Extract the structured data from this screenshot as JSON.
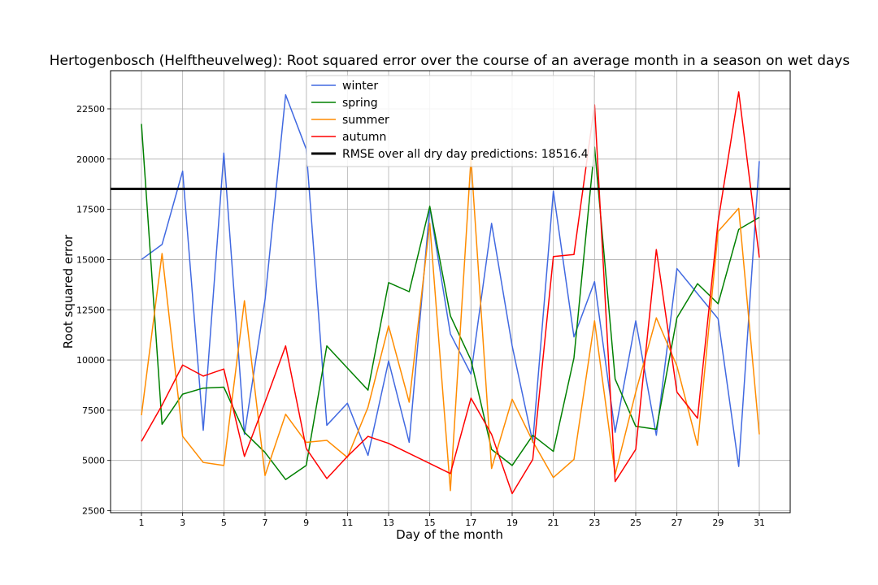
{
  "chart_data": {
    "type": "line",
    "title": "Hertogenbosch (Helftheuvelweg): Root squared error over the course of an average month in a season on wet days",
    "xlabel": "Day of the month",
    "ylabel": "Root squared error",
    "x": [
      1,
      2,
      3,
      4,
      5,
      6,
      7,
      8,
      9,
      10,
      11,
      12,
      13,
      14,
      15,
      16,
      17,
      18,
      19,
      20,
      21,
      22,
      23,
      24,
      25,
      26,
      27,
      28,
      29,
      30,
      31
    ],
    "xlim": [
      -0.5,
      32.5
    ],
    "ylim": [
      2400,
      24400
    ],
    "xticks": [
      1,
      3,
      5,
      7,
      9,
      11,
      13,
      15,
      17,
      19,
      21,
      23,
      25,
      27,
      29,
      31
    ],
    "yticks": [
      2500,
      5000,
      7500,
      10000,
      12500,
      15000,
      17500,
      20000,
      22500
    ],
    "grid": true,
    "legend_position": "top-center",
    "series": [
      {
        "name": "winter",
        "color": "#4169e1",
        "values": [
          15000,
          15750,
          19400,
          6500,
          20300,
          6300,
          13000,
          23200,
          20500,
          6750,
          7850,
          5250,
          9950,
          5900,
          17600,
          11300,
          9300,
          16800,
          10700,
          5900,
          18400,
          11150,
          13900,
          6400,
          11950,
          6250,
          14550,
          13300,
          12050,
          4700,
          19900
        ]
      },
      {
        "name": "spring",
        "color": "#008000",
        "values": [
          21750,
          6800,
          8300,
          8600,
          8650,
          6400,
          5400,
          4050,
          4750,
          10700,
          9600,
          8500,
          13850,
          13400,
          17650,
          12200,
          10000,
          5550,
          4750,
          6250,
          5450,
          10100,
          20600,
          9050,
          6700,
          6550,
          12100,
          13800,
          12800,
          16500,
          17100
        ]
      },
      {
        "name": "summer",
        "color": "#ff8c00",
        "values": [
          7250,
          15300,
          6200,
          4900,
          4750,
          12950,
          4250,
          7300,
          5900,
          6000,
          5150,
          7650,
          11700,
          7900,
          16800,
          3500,
          20050,
          4600,
          8050,
          5950,
          4150,
          5050,
          11950,
          4300,
          8400,
          12100,
          9700,
          5750,
          16400,
          17550,
          6300
        ]
      },
      {
        "name": "autumn",
        "color": "#ff0000",
        "values": [
          5950,
          7750,
          9750,
          9200,
          9550,
          5200,
          7900,
          10700,
          5600,
          4100,
          5200,
          6200,
          5850,
          5350,
          4850,
          4350,
          8100,
          6300,
          3350,
          5050,
          15150,
          15250,
          22700,
          3950,
          5550,
          15500,
          8400,
          7100,
          16900,
          23350,
          15100
        ]
      }
    ],
    "reference_line": {
      "name": "RMSE over all dry day predictions: 18516.4",
      "value": 18516.4,
      "color": "#000000"
    }
  }
}
